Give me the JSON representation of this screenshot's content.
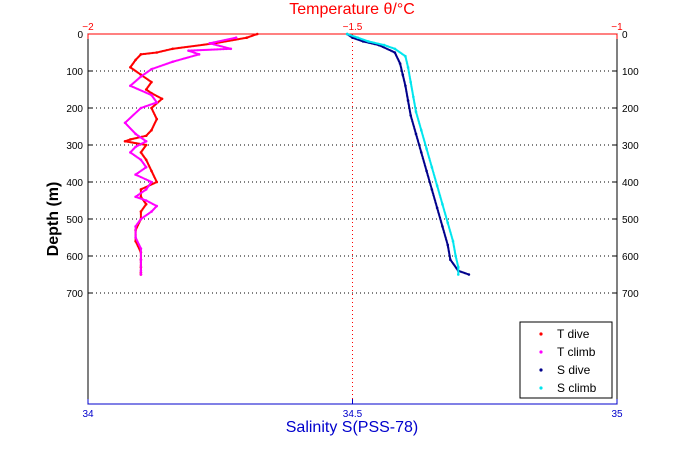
{
  "chart_data": {
    "type": "scatter",
    "top_axis": {
      "label": "Temperature θ/°C",
      "range": [
        -2,
        -1
      ],
      "ticks": [
        "-2",
        "-1.5",
        "-1"
      ],
      "color": "#ff0000"
    },
    "bottom_axis": {
      "label": "Salinity S(PSS-78)",
      "range": [
        34,
        35
      ],
      "ticks": [
        "34",
        "34.5",
        "35"
      ],
      "color": "#0000cc"
    },
    "y_axis": {
      "label": "Depth (m)",
      "range": [
        0,
        1000
      ],
      "reversed": true,
      "ticks": [
        "0",
        "100",
        "200",
        "300",
        "400",
        "500",
        "600",
        "700"
      ]
    },
    "grid": {
      "horizontal_dotted_to": 700,
      "vertical_dotted_at_salinity": 34.5
    },
    "legend": {
      "placement": "bottom-right"
    },
    "series": [
      {
        "name": "T dive",
        "axis": "top",
        "color": "#ff0000",
        "x": [
          -1.68,
          -1.7,
          -1.76,
          -1.84,
          -1.87,
          -1.9,
          -1.91,
          -1.92,
          -1.9,
          -1.88,
          -1.89,
          -1.88,
          -1.86,
          -1.88,
          -1.87,
          -1.88,
          -1.89,
          -1.92,
          -1.93,
          -1.89,
          -1.9,
          -1.89,
          -1.88,
          -1.87,
          -1.9,
          -1.9,
          -1.89,
          -1.9,
          -1.9,
          -1.91,
          -1.91,
          -1.9,
          -1.9,
          -1.9,
          -1.9,
          -1.9
        ],
        "y": [
          0,
          10,
          25,
          40,
          50,
          55,
          70,
          90,
          110,
          130,
          150,
          160,
          175,
          200,
          230,
          260,
          275,
          285,
          290,
          300,
          320,
          340,
          370,
          400,
          420,
          440,
          460,
          480,
          500,
          530,
          560,
          590,
          610,
          630,
          645,
          650
        ]
      },
      {
        "name": "T climb",
        "axis": "top",
        "color": "#ff00ff",
        "x": [
          -1.72,
          -1.77,
          -1.73,
          -1.81,
          -1.79,
          -1.84,
          -1.88,
          -1.9,
          -1.92,
          -1.88,
          -1.87,
          -1.9,
          -1.93,
          -1.91,
          -1.89,
          -1.91,
          -1.92,
          -1.9,
          -1.89,
          -1.91,
          -1.88,
          -1.89,
          -1.91,
          -1.89,
          -1.87,
          -1.88,
          -1.9,
          -1.91,
          -1.91,
          -1.9,
          -1.9,
          -1.9,
          -1.9
        ],
        "y": [
          10,
          25,
          40,
          45,
          55,
          75,
          95,
          115,
          140,
          165,
          185,
          200,
          240,
          270,
          290,
          305,
          320,
          340,
          360,
          380,
          400,
          420,
          440,
          450,
          465,
          480,
          500,
          520,
          550,
          580,
          610,
          640,
          650
        ]
      },
      {
        "name": "S dive",
        "axis": "bottom",
        "color": "#00008b",
        "x": [
          34.49,
          34.5,
          34.52,
          34.55,
          34.58,
          34.59,
          34.595,
          34.6,
          34.605,
          34.61,
          34.62,
          34.63,
          34.64,
          34.65,
          34.66,
          34.67,
          34.68,
          34.685,
          34.7,
          34.72
        ],
        "y": [
          0,
          10,
          20,
          30,
          50,
          80,
          110,
          140,
          180,
          220,
          270,
          320,
          370,
          420,
          470,
          520,
          570,
          610,
          640,
          650
        ]
      },
      {
        "name": "S climb",
        "axis": "bottom",
        "color": "#00e5ee",
        "x": [
          34.49,
          34.51,
          34.53,
          34.56,
          34.58,
          34.6,
          34.605,
          34.61,
          34.615,
          34.62,
          34.63,
          34.64,
          34.65,
          34.66,
          34.67,
          34.68,
          34.69,
          34.695,
          34.7,
          34.7
        ],
        "y": [
          0,
          10,
          20,
          30,
          40,
          60,
          90,
          130,
          170,
          210,
          260,
          310,
          360,
          410,
          460,
          510,
          560,
          600,
          630,
          650
        ]
      }
    ]
  }
}
